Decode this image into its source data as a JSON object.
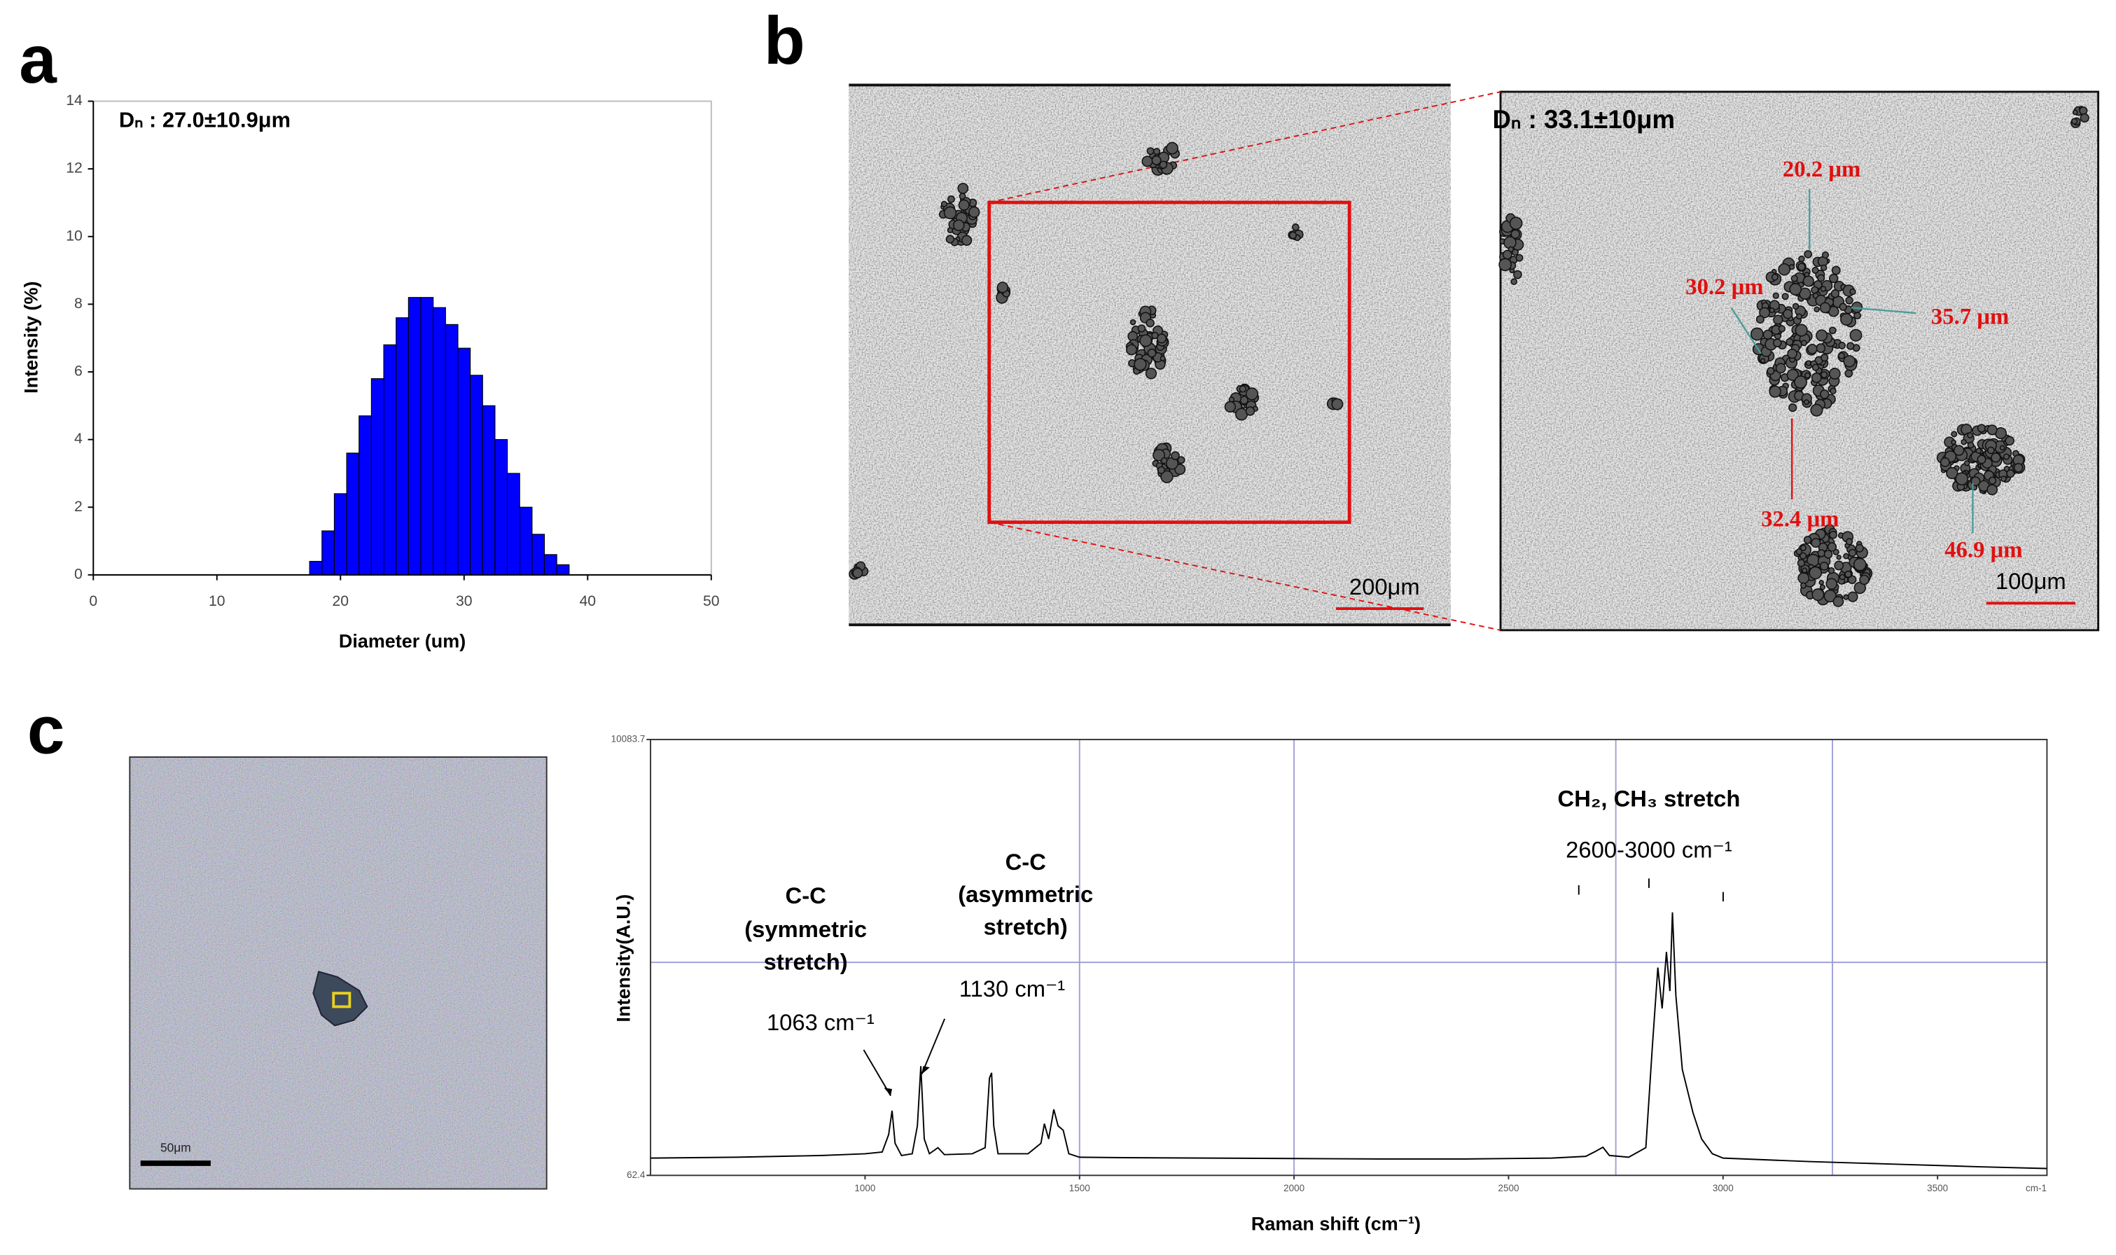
{
  "labels": {
    "a": "a",
    "b": "b",
    "c": "c"
  },
  "chart_data": [
    {
      "type": "histogram",
      "annotation": "Dₙ : 27.0±10.9μm",
      "x_label": "Diameter (um)",
      "y_label": "Intensity (%)",
      "color": "#0000ff",
      "bins": [
        17.5,
        18.5,
        19.5,
        20.5,
        21.5,
        22.5,
        23.5,
        24.5,
        25.5,
        26.5,
        27.5,
        28.5,
        29.5,
        30.5,
        31.5,
        32.5,
        33.5,
        34.5,
        35.5,
        36.5,
        37.5,
        38.5
      ],
      "values": [
        0.4,
        1.3,
        2.4,
        3.6,
        4.7,
        5.8,
        6.8,
        7.6,
        8.2,
        8.2,
        7.9,
        7.4,
        6.7,
        5.9,
        5.0,
        4.0,
        3.0,
        2.0,
        1.2,
        0.6,
        0.3
      ],
      "xlim": [
        0,
        50
      ],
      "xticks": [
        0,
        10,
        20,
        30,
        40,
        50
      ],
      "ylim": [
        0,
        14
      ],
      "yticks": [
        0,
        2,
        4,
        6,
        8,
        10,
        12,
        14
      ]
    },
    {
      "type": "line",
      "x_label": "Raman shift (cm⁻¹)",
      "y_label": "Intensity(A.U.)",
      "x_unit": "cm-1",
      "color": "#000000",
      "x": [
        500,
        600,
        700,
        800,
        900,
        950,
        1000,
        1040,
        1055,
        1063,
        1070,
        1085,
        1110,
        1122,
        1130,
        1138,
        1150,
        1170,
        1185,
        1250,
        1280,
        1290,
        1295,
        1300,
        1310,
        1380,
        1410,
        1418,
        1428,
        1440,
        1450,
        1462,
        1475,
        1500,
        1600,
        1800,
        2000,
        2200,
        2400,
        2600,
        2680,
        2700,
        2720,
        2735,
        2780,
        2820,
        2835,
        2848,
        2858,
        2868,
        2876,
        2882,
        2890,
        2905,
        2930,
        2950,
        2975,
        3000,
        3200,
        3400,
        3600,
        3755
      ],
      "values": [
        460,
        470,
        480,
        500,
        520,
        540,
        560,
        600,
        1000,
        1550,
        800,
        520,
        560,
        1200,
        2575,
        900,
        560,
        700,
        540,
        560,
        700,
        2300,
        2420,
        1200,
        560,
        560,
        800,
        1250,
        900,
        1580,
        1200,
        1100,
        560,
        480,
        470,
        460,
        450,
        440,
        440,
        460,
        500,
        600,
        710,
        520,
        480,
        700,
        3000,
        4840,
        3900,
        5200,
        4300,
        6110,
        4200,
        2500,
        1500,
        900,
        560,
        460,
        380,
        320,
        260,
        220
      ],
      "xlim": [
        500,
        3755
      ],
      "xticks": [
        1000,
        1500,
        2000,
        2500,
        3000,
        3500
      ],
      "ylim": [
        62.4,
        10083.7
      ],
      "yticks": [
        62.4,
        10083.7
      ],
      "grid_color": "#a0a0d8",
      "xgrid": [
        1500,
        2000,
        2750,
        3255
      ],
      "ygrid": [
        4960
      ],
      "annotations": [
        "C-C",
        "(symmetric",
        "stretch)",
        "1063 cm⁻¹",
        "C-C",
        "(asymmetric",
        "stretch)",
        "1130 cm⁻¹",
        "CH₂, CH₃ stretch",
        "2600-3000 cm⁻¹"
      ]
    }
  ],
  "micrographs": {
    "overview_scale": "200μm",
    "zoom_label": "Dₙ : 33.1±10μm",
    "zoom_scale": "100μm",
    "sizes": [
      "20.2 μm",
      "30.2 μm",
      "35.7 μm",
      "32.4 μm",
      "46.9 μm"
    ],
    "optical_scale": "50μm"
  }
}
